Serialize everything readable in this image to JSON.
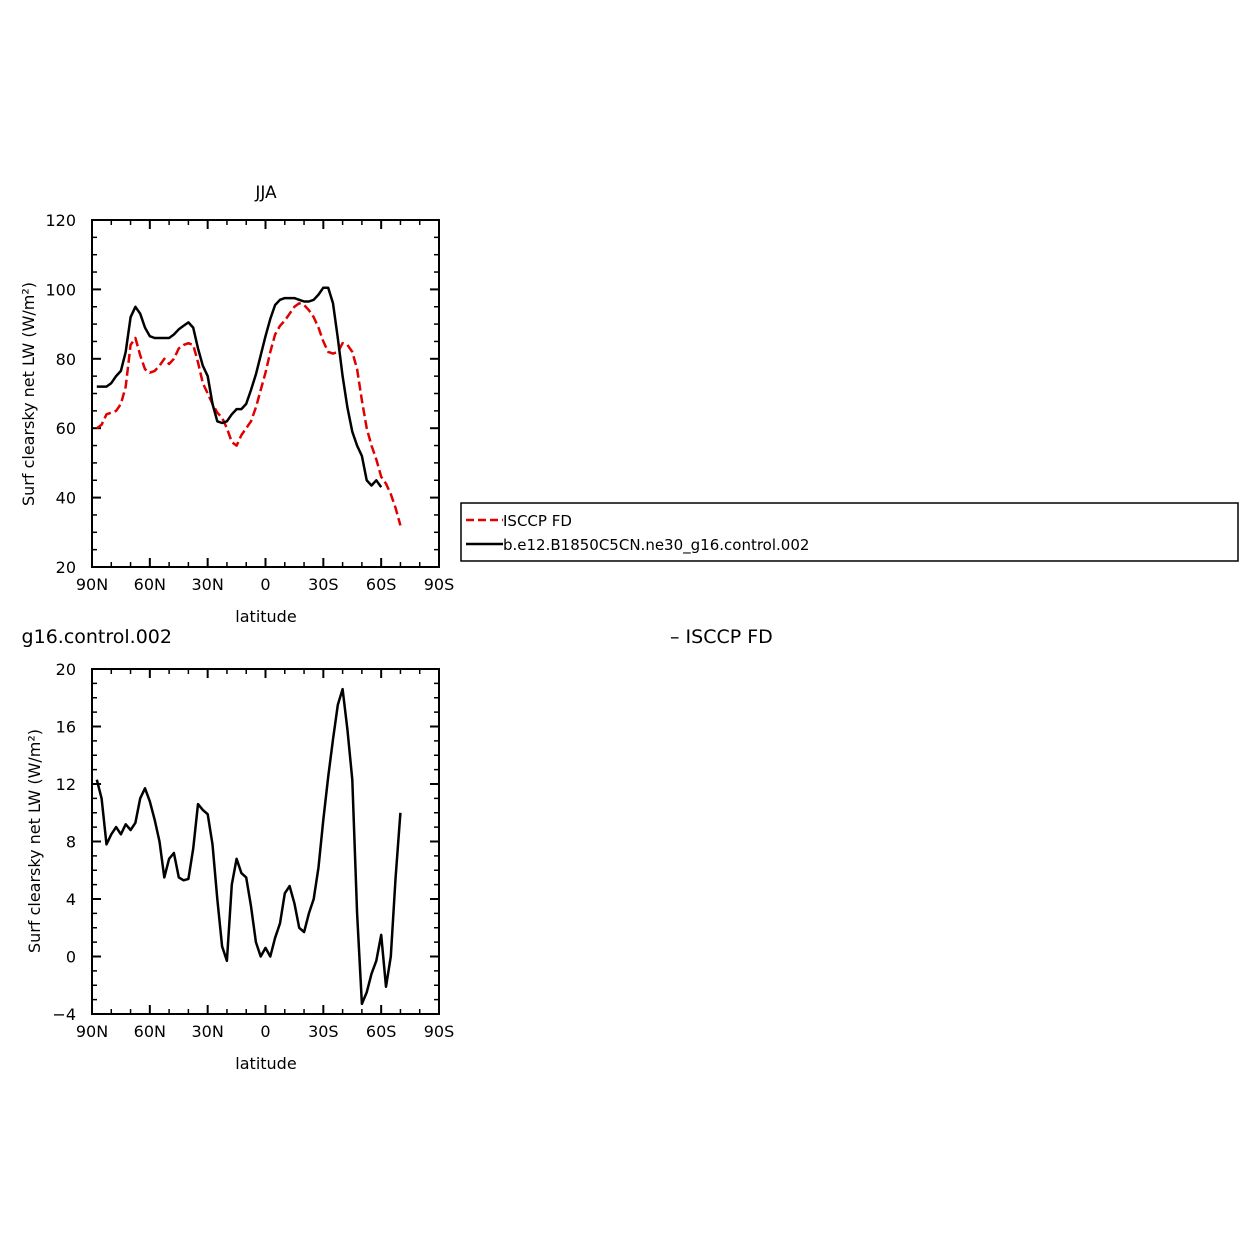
{
  "chart_data": [
    {
      "type": "line",
      "title": "JJA",
      "xlabel": "latitude",
      "ylabel": "Surf clearsky net LW (W/m²)",
      "xlim": [
        90,
        -90
      ],
      "ylim": [
        20,
        120
      ],
      "x_tick_values": [
        90,
        60,
        30,
        0,
        -30,
        -60,
        -90
      ],
      "x_tick_labels": [
        "90N",
        "60N",
        "30N",
        "0",
        "30S",
        "60S",
        "90S"
      ],
      "y_tick_values": [
        20,
        40,
        60,
        80,
        100,
        120
      ],
      "y_tick_labels": [
        "20",
        "40",
        "60",
        "80",
        "100",
        "120"
      ],
      "legend": {
        "placement": "right",
        "entries": [
          "ISCCP FD",
          "b.e12.B1850C5CN.ne30_g16.control.002"
        ]
      },
      "series": [
        {
          "name": "ISCCP FD",
          "color": "#e00000",
          "dash": true,
          "points": [
            [
              87.5,
              60
            ],
            [
              85,
              61
            ],
            [
              82.5,
              64
            ],
            [
              80,
              64.5
            ],
            [
              77.5,
              65
            ],
            [
              75,
              67
            ],
            [
              72.5,
              72
            ],
            [
              70,
              84
            ],
            [
              67.5,
              86
            ],
            [
              65,
              81
            ],
            [
              62.5,
              77
            ],
            [
              60,
              76
            ],
            [
              57.5,
              76.5
            ],
            [
              55,
              78
            ],
            [
              52.5,
              80
            ],
            [
              50,
              78.5
            ],
            [
              47.5,
              80
            ],
            [
              45,
              83
            ],
            [
              42.5,
              84
            ],
            [
              40,
              84.5
            ],
            [
              37.5,
              84
            ],
            [
              35,
              79
            ],
            [
              32.5,
              73
            ],
            [
              30,
              70
            ],
            [
              27.5,
              67
            ],
            [
              25,
              64.5
            ],
            [
              22.5,
              63
            ],
            [
              20,
              60
            ],
            [
              17.5,
              56
            ],
            [
              15,
              55
            ],
            [
              12.5,
              58
            ],
            [
              10,
              60
            ],
            [
              7.5,
              62
            ],
            [
              5,
              66
            ],
            [
              2.5,
              71
            ],
            [
              0,
              76
            ],
            [
              -2.5,
              82
            ],
            [
              -5,
              87
            ],
            [
              -7.5,
              89.5
            ],
            [
              -10,
              91
            ],
            [
              -12.5,
              93
            ],
            [
              -15,
              95
            ],
            [
              -17.5,
              96
            ],
            [
              -20,
              95.5
            ],
            [
              -22.5,
              94
            ],
            [
              -25,
              92
            ],
            [
              -27.5,
              89
            ],
            [
              -30,
              85
            ],
            [
              -32.5,
              82
            ],
            [
              -35,
              81.5
            ],
            [
              -37.5,
              82
            ],
            [
              -40,
              84.5
            ],
            [
              -42.5,
              84
            ],
            [
              -45,
              82
            ],
            [
              -47.5,
              77
            ],
            [
              -50,
              68
            ],
            [
              -52.5,
              60
            ],
            [
              -55,
              55
            ],
            [
              -57.5,
              51
            ],
            [
              -60,
              46
            ],
            [
              -62.5,
              44
            ],
            [
              -65,
              41
            ],
            [
              -67.5,
              37
            ],
            [
              -70,
              32
            ]
          ]
        },
        {
          "name": "b.e12.B1850C5CN.ne30_g16.control.002",
          "color": "#000000",
          "dash": false,
          "points": [
            [
              87.5,
              72
            ],
            [
              85,
              72
            ],
            [
              82.5,
              72
            ],
            [
              80,
              73
            ],
            [
              77.5,
              75
            ],
            [
              75,
              76.5
            ],
            [
              72.5,
              82
            ],
            [
              70,
              92
            ],
            [
              67.5,
              95
            ],
            [
              65,
              93
            ],
            [
              62.5,
              89
            ],
            [
              60,
              86.5
            ],
            [
              57.5,
              86
            ],
            [
              55,
              86
            ],
            [
              52.5,
              86
            ],
            [
              50,
              86
            ],
            [
              47.5,
              87
            ],
            [
              45,
              88.5
            ],
            [
              42.5,
              89.5
            ],
            [
              40,
              90.5
            ],
            [
              37.5,
              89
            ],
            [
              35,
              83
            ],
            [
              32.5,
              78
            ],
            [
              30,
              75
            ],
            [
              27.5,
              67
            ],
            [
              25,
              62
            ],
            [
              22.5,
              61.5
            ],
            [
              20,
              62
            ],
            [
              17.5,
              64
            ],
            [
              15,
              65.5
            ],
            [
              12.5,
              65.5
            ],
            [
              10,
              67
            ],
            [
              7.5,
              71
            ],
            [
              5,
              75.5
            ],
            [
              2.5,
              81
            ],
            [
              0,
              86.5
            ],
            [
              -2.5,
              91.5
            ],
            [
              -5,
              95.5
            ],
            [
              -7.5,
              97
            ],
            [
              -10,
              97.5
            ],
            [
              -12.5,
              97.5
            ],
            [
              -15,
              97.5
            ],
            [
              -17.5,
              97
            ],
            [
              -20,
              96.5
            ],
            [
              -22.5,
              96.5
            ],
            [
              -25,
              97
            ],
            [
              -27.5,
              98.5
            ],
            [
              -30,
              100.5
            ],
            [
              -32.5,
              100.5
            ],
            [
              -35,
              96
            ],
            [
              -37.5,
              86
            ],
            [
              -40,
              75
            ],
            [
              -42.5,
              66
            ],
            [
              -45,
              59
            ],
            [
              -47.5,
              55
            ],
            [
              -50,
              52
            ],
            [
              -52.5,
              45
            ],
            [
              -55,
              43.5
            ],
            [
              -57.5,
              45
            ],
            [
              -60,
              43
            ]
          ]
        }
      ]
    },
    {
      "type": "line",
      "title": "g16.control.002",
      "title_right": "– ISCCP FD",
      "xlabel": "latitude",
      "ylabel": "Surf clearsky net LW (W/m²)",
      "xlim": [
        90,
        -90
      ],
      "ylim": [
        -4,
        20
      ],
      "x_tick_values": [
        90,
        60,
        30,
        0,
        -30,
        -60,
        -90
      ],
      "x_tick_labels": [
        "90N",
        "60N",
        "30N",
        "0",
        "30S",
        "60S",
        "90S"
      ],
      "y_tick_values": [
        -4,
        0,
        4,
        8,
        12,
        16,
        20
      ],
      "y_tick_labels": [
        "−4",
        "0",
        "4",
        "8",
        "12",
        "16",
        "20"
      ],
      "series": [
        {
          "color": "#000000",
          "dash": false,
          "points": [
            [
              87.5,
              12.3
            ],
            [
              85,
              11
            ],
            [
              82.5,
              7.8
            ],
            [
              80,
              8.5
            ],
            [
              77.5,
              9
            ],
            [
              75,
              8.5
            ],
            [
              72.5,
              9.2
            ],
            [
              70,
              8.8
            ],
            [
              67.5,
              9.3
            ],
            [
              65,
              11
            ],
            [
              62.5,
              11.7
            ],
            [
              60,
              10.8
            ],
            [
              57.5,
              9.5
            ],
            [
              55,
              8
            ],
            [
              52.5,
              5.5
            ],
            [
              50,
              6.8
            ],
            [
              47.5,
              7.2
            ],
            [
              45,
              5.5
            ],
            [
              42.5,
              5.3
            ],
            [
              40,
              5.4
            ],
            [
              37.5,
              7.5
            ],
            [
              35,
              10.6
            ],
            [
              32.5,
              10.2
            ],
            [
              30,
              9.9
            ],
            [
              27.5,
              7.8
            ],
            [
              25,
              4
            ],
            [
              22.5,
              0.7
            ],
            [
              20,
              -0.3
            ],
            [
              17.5,
              5
            ],
            [
              15,
              6.8
            ],
            [
              12.5,
              5.8
            ],
            [
              10,
              5.5
            ],
            [
              7.5,
              3.5
            ],
            [
              5,
              1
            ],
            [
              2.5,
              0
            ],
            [
              0,
              0.6
            ],
            [
              -2.5,
              0
            ],
            [
              -5,
              1.3
            ],
            [
              -7.5,
              2.3
            ],
            [
              -10,
              4.4
            ],
            [
              -12.5,
              4.9
            ],
            [
              -15,
              3.7
            ],
            [
              -17.5,
              2
            ],
            [
              -20,
              1.7
            ],
            [
              -22.5,
              3
            ],
            [
              -25,
              4
            ],
            [
              -27.5,
              6.2
            ],
            [
              -30,
              9.5
            ],
            [
              -32.5,
              12.5
            ],
            [
              -35,
              15.1
            ],
            [
              -37.5,
              17.5
            ],
            [
              -40,
              18.6
            ],
            [
              -42.5,
              15.8
            ],
            [
              -45,
              12.3
            ],
            [
              -47.5,
              3
            ],
            [
              -50,
              -3.3
            ],
            [
              -52.5,
              -2.5
            ],
            [
              -55,
              -1.2
            ],
            [
              -57.5,
              -0.3
            ],
            [
              -60,
              1.5
            ],
            [
              -62.5,
              -2.1
            ],
            [
              -65,
              0
            ],
            [
              -67.5,
              5.5
            ],
            [
              -70,
              10
            ]
          ]
        }
      ]
    }
  ]
}
